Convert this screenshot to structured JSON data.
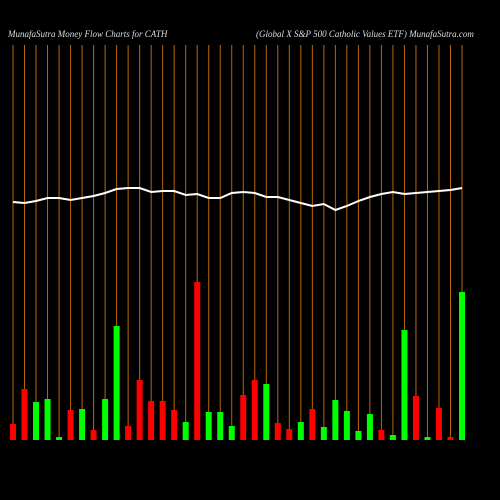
{
  "chart_data": {
    "type": "bar",
    "title": "MunafaSutra  Money Flow  Charts for CATH",
    "subtitle": "(Global X  S&P 500  Catholic Values ETF) MunafaSutra.com",
    "categories": [
      null,
      null,
      null,
      null,
      null,
      null,
      null,
      null,
      null,
      null,
      null,
      null,
      null,
      null,
      null,
      null,
      null,
      null,
      null,
      null,
      null,
      null,
      null,
      null,
      null,
      null,
      null,
      null,
      null,
      null,
      null,
      null,
      null,
      null,
      null,
      null,
      null,
      null,
      null,
      null
    ],
    "values": [
      16,
      51,
      38,
      41,
      3,
      30,
      31,
      10,
      41,
      114,
      14,
      60,
      39,
      39,
      30,
      18,
      158,
      28,
      28,
      14,
      45,
      60,
      56,
      17,
      11,
      18,
      31,
      13,
      40,
      29,
      9,
      26,
      10,
      5,
      110,
      44,
      3,
      32,
      3,
      148
    ],
    "colors": [
      "#ff0000",
      "#ff0000",
      "#00ff00",
      "#00ff00",
      "#00ff00",
      "#ff0000",
      "#00ff00",
      "#ff0000",
      "#00ff00",
      "#00ff00",
      "#ff0000",
      "#ff0000",
      "#ff0000",
      "#ff0000",
      "#ff0000",
      "#00ff00",
      "#ff0000",
      "#00ff00",
      "#00ff00",
      "#00ff00",
      "#ff0000",
      "#ff0000",
      "#00ff00",
      "#ff0000",
      "#ff0000",
      "#00ff00",
      "#ff0000",
      "#00ff00",
      "#00ff00",
      "#00ff00",
      "#00ff00",
      "#00ff00",
      "#ff0000",
      "#00ff00",
      "#00ff00",
      "#ff0000",
      "#00ff00",
      "#ff0000",
      "#ff0000",
      "#00ff00"
    ],
    "ylim": [
      0,
      160
    ],
    "price": [
      48,
      47,
      49,
      52,
      52,
      50,
      52,
      54,
      57,
      61,
      62,
      62,
      58,
      59,
      59,
      55,
      56,
      52,
      52,
      57,
      58,
      57,
      53,
      53,
      50,
      47,
      44,
      46,
      40,
      44,
      49,
      53,
      56,
      58,
      56,
      57,
      58,
      59,
      60,
      62
    ],
    "price_lim": [
      0,
      250
    ],
    "price_color": "#ffffff",
    "grid_color": "#b8660b"
  }
}
